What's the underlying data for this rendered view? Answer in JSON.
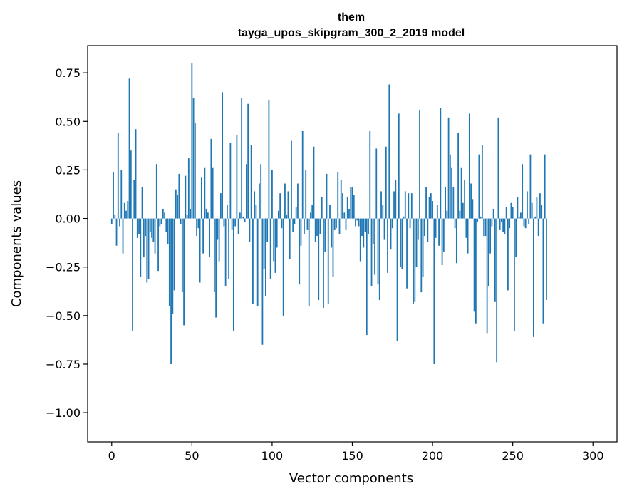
{
  "chart_data": {
    "type": "bar",
    "title": "them",
    "subtitle": "tayga_upos_skipgram_300_2_2019 model",
    "xlabel": "Vector components",
    "ylabel": "Components values",
    "xlim": [
      -15,
      315
    ],
    "ylim": [
      -1.15,
      0.89
    ],
    "xticks": [
      0,
      50,
      100,
      150,
      200,
      250,
      300
    ],
    "xtick_labels": [
      "0",
      "50",
      "100",
      "150",
      "200",
      "250",
      "300"
    ],
    "yticks": [
      0.75,
      0.5,
      0.25,
      0.0,
      -0.25,
      -0.5,
      -0.75,
      -1.0
    ],
    "ytick_labels": [
      "0.75",
      "0.50",
      "0.25",
      "0.00",
      "−0.25",
      "−0.50",
      "−0.75",
      "−1.00"
    ],
    "grid": false,
    "bar_color": "#1f77b4",
    "values": [
      -0.03,
      0.24,
      0.02,
      -0.14,
      0.44,
      -0.04,
      0.25,
      -0.18,
      0.08,
      0.04,
      0.09,
      0.72,
      0.35,
      -0.58,
      0.2,
      0.46,
      -0.1,
      -0.08,
      -0.3,
      0.16,
      -0.2,
      -0.09,
      -0.33,
      -0.31,
      -0.07,
      -0.1,
      -0.12,
      -0.18,
      0.28,
      -0.27,
      -0.04,
      -0.03,
      0.05,
      0.03,
      -0.07,
      -0.13,
      -0.45,
      -0.75,
      -0.49,
      -0.37,
      0.15,
      0.12,
      0.23,
      -0.03,
      -0.38,
      -0.55,
      0.22,
      0.02,
      0.31,
      0.05,
      0.8,
      0.62,
      0.49,
      -0.09,
      -0.05,
      -0.33,
      0.21,
      -0.18,
      0.26,
      0.05,
      0.03,
      -0.2,
      0.41,
      0.26,
      -0.38,
      -0.51,
      -0.11,
      -0.22,
      0.13,
      0.65,
      -0.04,
      -0.35,
      0.07,
      -0.31,
      0.39,
      -0.06,
      -0.58,
      -0.04,
      0.43,
      -0.08,
      0.03,
      0.62,
      0.01,
      -0.02,
      0.28,
      0.59,
      -0.12,
      0.38,
      -0.44,
      0.14,
      0.07,
      -0.45,
      0.18,
      0.28,
      -0.65,
      -0.26,
      -0.4,
      -0.12,
      0.61,
      -0.31,
      0.25,
      -0.22,
      -0.28,
      -0.15,
      0.04,
      0.13,
      -0.05,
      -0.5,
      0.18,
      0.02,
      0.14,
      -0.21,
      0.4,
      -0.07,
      -0.03,
      0.06,
      0.18,
      -0.34,
      -0.14,
      0.45,
      -0.08,
      0.25,
      -0.06,
      -0.45,
      0.03,
      0.07,
      0.37,
      -0.12,
      -0.09,
      -0.42,
      -0.08,
      0.11,
      -0.46,
      -0.17,
      0.23,
      -0.44,
      0.07,
      -0.15,
      -0.3,
      -0.06,
      -0.05,
      0.24,
      -0.08,
      0.2,
      0.13,
      0.03,
      -0.06,
      0.11,
      0.05,
      0.16,
      0.16,
      0.12,
      -0.04,
      -0.01,
      -0.04,
      -0.22,
      -0.09,
      -0.15,
      -0.07,
      -0.6,
      -0.08,
      0.45,
      -0.35,
      -0.13,
      -0.29,
      0.36,
      -0.34,
      -0.42,
      0.14,
      0.07,
      -0.11,
      0.37,
      -0.28,
      0.69,
      -0.16,
      -0.05,
      0.14,
      0.2,
      -0.63,
      0.54,
      -0.25,
      -0.26,
      0.01,
      0.14,
      -0.36,
      0.13,
      -0.05,
      0.13,
      -0.44,
      -0.43,
      -0.25,
      -0.11,
      0.56,
      -0.38,
      -0.3,
      -0.09,
      0.16,
      -0.12,
      0.11,
      0.13,
      0.09,
      -0.75,
      -0.1,
      0.07,
      -0.14,
      0.57,
      -0.24,
      -0.17,
      0.16,
      0.04,
      0.52,
      0.33,
      0.26,
      0.16,
      -0.05,
      -0.23,
      0.44,
      0.04,
      0.26,
      0.08,
      0.2,
      -0.1,
      -0.18,
      0.54,
      0.18,
      0.1,
      -0.48,
      -0.54,
      -0.02,
      0.33,
      0.01,
      0.38,
      -0.09,
      -0.09,
      -0.59,
      -0.35,
      -0.18,
      -0.04,
      0.05,
      -0.43,
      -0.74,
      0.52,
      -0.06,
      -0.02,
      -0.07,
      -0.08,
      0.06,
      -0.37,
      -0.05,
      0.08,
      0.06,
      -0.58,
      -0.2,
      0.11,
      0.01,
      0.03,
      0.28,
      -0.04,
      -0.05,
      0.14,
      -0.03,
      0.33,
      0.08,
      -0.61,
      0.01,
      0.11,
      -0.09,
      0.13,
      0.07,
      -0.54,
      0.33,
      -0.42
    ]
  }
}
